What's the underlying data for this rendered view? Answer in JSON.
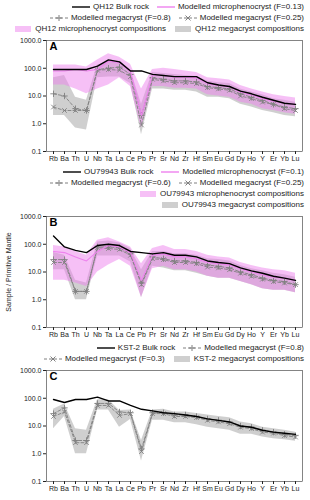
{
  "chart_data": [
    {
      "type": "line",
      "title": "A",
      "log": "y",
      "grid": false,
      "legend": "upper right",
      "categories": [
        "Rb",
        "Ba",
        "Th",
        "U",
        "Nb",
        "Ta",
        "La",
        "Ce",
        "Pb",
        "Pr",
        "Sr",
        "Nd",
        "Zr",
        "Hf",
        "Sm",
        "Eu",
        "Gd",
        "Dy",
        "Ho",
        "Y",
        "Er",
        "Yb",
        "Lu"
      ],
      "ylim": [
        0.1,
        1000
      ],
      "yticks": [
        0.1,
        {
          "value": 1,
          "label": "1.0"
        },
        {
          "value": 10,
          "label": "10.0"
        },
        {
          "value": 100,
          "label": "100.0"
        },
        {
          "value": 1000,
          "label": "1000.0"
        }
      ],
      "series": [
        {
          "name": "QH12 Bulk rock",
          "type": "line",
          "color": "#000000",
          "line_style": "solid",
          "values": [
            90,
            90,
            90,
            90,
            120,
            200,
            170,
            80,
            80,
            60,
            55,
            50,
            50,
            50,
            30,
            25,
            22,
            15,
            12,
            9,
            7,
            5.5,
            5
          ]
        },
        {
          "name": "Modelled microphenocryst (F=0.13)",
          "type": "line",
          "color": "#ee82ee",
          "line_style": "solid",
          "values": [
            80,
            80,
            90,
            80,
            90,
            180,
            160,
            75,
            2,
            58,
            55,
            48,
            48,
            45,
            28,
            24,
            21,
            14,
            11,
            8,
            6.5,
            5.5,
            5
          ]
        },
        {
          "name": "Modelled megacryst (F=0.8)",
          "type": "line",
          "color": "#808080",
          "line_style": "dashed",
          "marker": "plus",
          "values": [
            12,
            10,
            3.5,
            3,
            90,
            100,
            110,
            60,
            2,
            45,
            40,
            35,
            35,
            32,
            22,
            20,
            18,
            12,
            9,
            7,
            5,
            4,
            3.5
          ]
        },
        {
          "name": "Modelled megacryst (F=0.25)",
          "type": "line",
          "color": "#808080",
          "line_style": "dashed",
          "marker": "x",
          "values": [
            4,
            3,
            3,
            3,
            85,
            90,
            85,
            50,
            0.9,
            40,
            35,
            30,
            30,
            28,
            20,
            18,
            16,
            10,
            8,
            6,
            5,
            3.5,
            3
          ]
        },
        {
          "name": "QH12 microphenocryst compositions",
          "type": "area",
          "color": "#ee82ee",
          "lower": [
            25,
            25,
            18,
            12,
            18,
            25,
            45,
            22,
            0.7,
            22,
            22,
            19,
            19,
            18,
            11,
            10,
            9,
            6,
            5,
            3.5,
            3,
            2.5,
            2.2
          ],
          "upper": [
            130,
            130,
            130,
            110,
            200,
            330,
            250,
            140,
            18,
            90,
            100,
            90,
            80,
            70,
            45,
            42,
            38,
            24,
            18,
            14,
            11,
            9.5,
            8.5
          ]
        },
        {
          "name": "QH12 megacryst compositions",
          "type": "area",
          "color": "#a0a0a0",
          "lower": [
            2,
            2,
            0.7,
            0.6,
            45,
            48,
            48,
            28,
            0.4,
            18,
            18,
            16,
            16,
            14,
            9,
            9,
            8,
            5,
            4,
            3,
            2.5,
            2,
            1.8
          ],
          "upper": [
            45,
            55,
            9,
            7,
            130,
            160,
            160,
            90,
            5,
            70,
            65,
            60,
            55,
            50,
            35,
            30,
            28,
            18,
            14,
            11,
            8,
            7,
            6
          ]
        }
      ]
    },
    {
      "type": "line",
      "title": "B",
      "log": "y",
      "grid": false,
      "legend": "upper right",
      "ylabel": "Sample / Primitive Mantle",
      "categories": [
        "Rb",
        "Ba",
        "Th",
        "U",
        "Nb",
        "Ta",
        "La",
        "Ce",
        "Pb",
        "Pr",
        "Sr",
        "Nd",
        "Zr",
        "Hf",
        "Sm",
        "Eu",
        "Gd",
        "Dy",
        "Ho",
        "Y",
        "Er",
        "Yb",
        "Lu"
      ],
      "ylim": [
        0.1,
        1000
      ],
      "yticks": [
        0.1,
        {
          "value": 1,
          "label": "1.0"
        },
        {
          "value": 10,
          "label": "10.0"
        },
        {
          "value": 100,
          "label": "100.0"
        },
        {
          "value": 1000,
          "label": "1000.0"
        }
      ],
      "series": [
        {
          "name": "OU79943 Bulk rock",
          "type": "line",
          "color": "#000000",
          "line_style": "solid",
          "values": [
            200,
            80,
            60,
            50,
            90,
            100,
            90,
            55,
            50,
            45,
            50,
            40,
            40,
            35,
            25,
            22,
            20,
            14,
            11,
            9,
            7,
            6,
            5
          ]
        },
        {
          "name": "Modelled microphenocryst (F=0.1)",
          "type": "line",
          "color": "#ee82ee",
          "line_style": "solid",
          "values": [
            55,
            50,
            35,
            25,
            55,
            90,
            80,
            50,
            5,
            40,
            45,
            35,
            35,
            30,
            22,
            20,
            18,
            13,
            10,
            8,
            6.5,
            6,
            5
          ]
        },
        {
          "name": "Modelled megacryst (F=0.6)",
          "type": "line",
          "color": "#808080",
          "line_style": "dashed",
          "marker": "plus",
          "values": [
            28,
            28,
            2,
            2,
            80,
            80,
            75,
            45,
            4,
            35,
            30,
            25,
            25,
            22,
            18,
            16,
            14,
            10,
            8,
            6,
            5,
            4.5,
            3.5
          ]
        },
        {
          "name": "Modelled megacryst (F=0.25)",
          "type": "line",
          "color": "#808080",
          "line_style": "dashed",
          "marker": "x",
          "values": [
            22,
            22,
            2,
            2,
            75,
            70,
            65,
            40,
            3.5,
            30,
            28,
            22,
            22,
            20,
            15,
            14,
            12,
            9,
            7,
            5.5,
            4.5,
            4,
            3.5
          ]
        },
        {
          "name": "OU79943 microphenocryst compositions",
          "type": "area",
          "color": "#ee82ee",
          "lower": [
            5,
            5,
            4,
            3,
            10,
            18,
            28,
            16,
            1.2,
            13,
            16,
            12,
            12,
            10,
            7,
            6,
            6,
            4.5,
            3.5,
            2.5,
            2.2,
            2.2,
            1.8
          ],
          "upper": [
            90,
            80,
            55,
            40,
            140,
            170,
            120,
            80,
            20,
            70,
            90,
            65,
            65,
            55,
            40,
            35,
            32,
            22,
            17,
            14,
            12,
            11,
            9
          ]
        },
        {
          "name": "OU79943 megacryst compositions",
          "type": "area",
          "color": "#a0a0a0",
          "lower": [
            12,
            12,
            1,
            1,
            38,
            38,
            38,
            23,
            1.2,
            16,
            14,
            11,
            11,
            9,
            7,
            6,
            6,
            4.5,
            3.5,
            2.5,
            2.2,
            2.2,
            1.8
          ],
          "upper": [
            50,
            40,
            5,
            4,
            120,
            130,
            110,
            70,
            12,
            55,
            55,
            45,
            45,
            40,
            30,
            28,
            25,
            17,
            13,
            11,
            9,
            8,
            6.5
          ]
        }
      ]
    },
    {
      "type": "line",
      "title": "C",
      "log": "y",
      "grid": false,
      "legend": "upper right",
      "categories": [
        "Rb",
        "Ba",
        "Th",
        "U",
        "Nb",
        "Ta",
        "La",
        "Ce",
        "Pb",
        "Pr",
        "Sr",
        "Nd",
        "Zr",
        "Hf",
        "Sm",
        "Eu",
        "Gd",
        "Dy",
        "Ho",
        "Y",
        "Er",
        "Yb",
        "Lu"
      ],
      "ylim": [
        0.1,
        1000
      ],
      "yticks": [
        0.1,
        {
          "value": 1,
          "label": "1.0"
        },
        {
          "value": 10,
          "label": "10.0"
        },
        {
          "value": 100,
          "label": "100.0"
        },
        {
          "value": 1000,
          "label": "1000.0"
        }
      ],
      "series": [
        {
          "name": "KST-2 Bulk rock",
          "type": "line",
          "color": "#000000",
          "line_style": "solid",
          "values": [
            90,
            70,
            90,
            90,
            110,
            80,
            80,
            55,
            40,
            35,
            30,
            28,
            25,
            22,
            18,
            16,
            14,
            10,
            9,
            7,
            6,
            5.5,
            5
          ]
        },
        {
          "name": "Modelled megacryst (F=0.8)",
          "type": "line",
          "color": "#808080",
          "line_style": "dashed",
          "marker": "plus",
          "values": [
            28,
            45,
            3,
            3,
            65,
            65,
            32,
            30,
            1.5,
            30,
            30,
            25,
            25,
            22,
            18,
            16,
            14,
            10,
            9,
            7,
            6,
            5,
            4.5
          ]
        },
        {
          "name": "Modelled megacryst (F=0.3)",
          "type": "line",
          "color": "#808080",
          "line_style": "dashed",
          "marker": "x",
          "values": [
            22,
            32,
            2.5,
            2.5,
            55,
            55,
            24,
            28,
            1.2,
            28,
            28,
            22,
            22,
            20,
            16,
            14,
            12,
            9,
            8,
            6,
            5.5,
            4.5,
            4
          ]
        },
        {
          "name": "KST-2 megacryst compositions",
          "type": "area",
          "color": "#a0a0a0",
          "lower": [
            8,
            22,
            1,
            1,
            38,
            38,
            9,
            17,
            0.55,
            16,
            16,
            13,
            13,
            11,
            9,
            8,
            7,
            5,
            5,
            4,
            3.5,
            3.2,
            2.8
          ],
          "upper": [
            40,
            62,
            8,
            7,
            88,
            88,
            36,
            38,
            3,
            38,
            40,
            32,
            32,
            28,
            25,
            22,
            20,
            14,
            12,
            9,
            8,
            7,
            6
          ]
        }
      ]
    }
  ]
}
